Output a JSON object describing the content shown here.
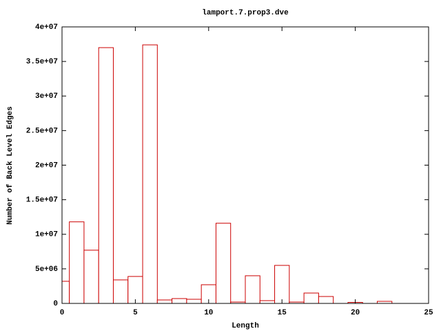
{
  "chart_data": {
    "type": "bar",
    "title": "lamport.7.prop3.dve",
    "x_label": "Length",
    "y_label": "Number of Back Level Edges",
    "x": [
      0,
      1,
      2,
      3,
      4,
      5,
      6,
      7,
      8,
      9,
      10,
      11,
      12,
      13,
      14,
      15,
      16,
      17,
      18,
      20,
      22
    ],
    "values": [
      3200000,
      11800000,
      7700000,
      37000000,
      3400000,
      3900000,
      37400000,
      500000,
      700000,
      600000,
      2700000,
      11600000,
      200000,
      4000000,
      400000,
      5500000,
      200000,
      1500000,
      1000000,
      150000,
      300000
    ],
    "color": "#cc0000",
    "xlim": [
      0,
      25
    ],
    "xticks": [
      0,
      5,
      10,
      15,
      20,
      25
    ],
    "ylim": [
      0,
      40000000
    ],
    "yticks": [
      0,
      {
        "value": 5000000,
        "label": "5e+06"
      },
      {
        "value": 10000000,
        "label": "1e+07"
      },
      {
        "value": 15000000,
        "label": "1.5e+07"
      },
      {
        "value": 20000000,
        "label": "2e+07"
      },
      {
        "value": 25000000,
        "label": "2.5e+07"
      },
      {
        "value": 30000000,
        "label": "3e+07"
      },
      {
        "value": 35000000,
        "label": "3.5e+07"
      },
      {
        "value": 40000000,
        "label": "4e+07"
      }
    ],
    "grid": false
  }
}
